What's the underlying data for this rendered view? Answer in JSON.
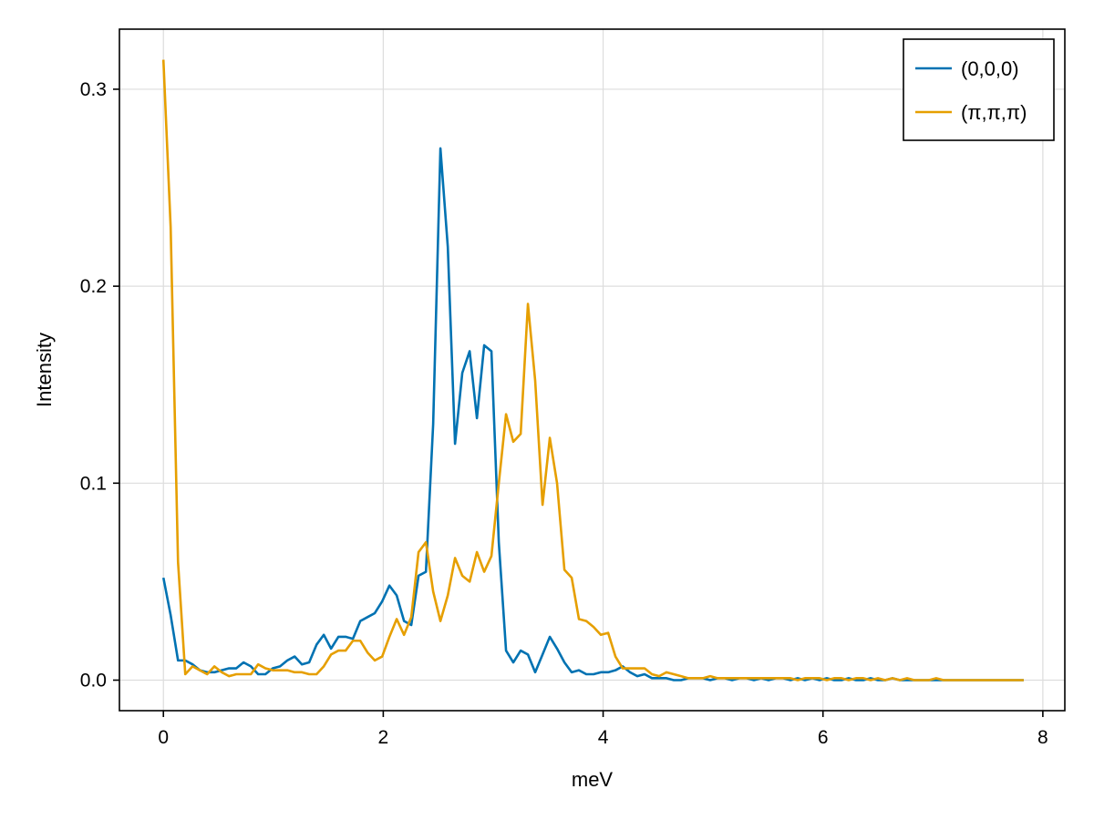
{
  "chart_data": {
    "type": "line",
    "title": "",
    "xlabel": "meV",
    "ylabel": "Intensity",
    "xlim": [
      -0.4,
      8.2
    ],
    "ylim": [
      -0.0155,
      0.3305
    ],
    "xticks": [
      0,
      2,
      4,
      6,
      8
    ],
    "yticks": [
      0.0,
      0.1,
      0.2,
      0.3
    ],
    "xtick_labels": [
      "0",
      "2",
      "4",
      "6",
      "8"
    ],
    "ytick_labels": [
      "0.0",
      "0.1",
      "0.2",
      "0.3"
    ],
    "grid": true,
    "legend_position": "top-right",
    "series": [
      {
        "name": "(0,0,0)",
        "color": "#0072b2",
        "x": [
          0.0,
          0.066,
          0.133,
          0.199,
          0.265,
          0.332,
          0.398,
          0.464,
          0.531,
          0.597,
          0.663,
          0.729,
          0.796,
          0.862,
          0.928,
          0.995,
          1.061,
          1.127,
          1.194,
          1.26,
          1.326,
          1.393,
          1.459,
          1.525,
          1.592,
          1.658,
          1.724,
          1.791,
          1.857,
          1.923,
          1.99,
          2.056,
          2.122,
          2.189,
          2.255,
          2.321,
          2.388,
          2.454,
          2.52,
          2.587,
          2.653,
          2.719,
          2.786,
          2.852,
          2.918,
          2.984,
          3.051,
          3.117,
          3.183,
          3.25,
          3.316,
          3.382,
          3.449,
          3.515,
          3.581,
          3.648,
          3.714,
          3.78,
          3.847,
          3.913,
          3.979,
          4.046,
          4.112,
          4.178,
          4.245,
          4.311,
          4.377,
          4.444,
          4.51,
          4.576,
          4.643,
          4.709,
          4.775,
          4.842,
          4.908,
          4.974,
          5.041,
          5.107,
          5.173,
          5.239,
          5.306,
          5.372,
          5.438,
          5.505,
          5.571,
          5.637,
          5.704,
          5.77,
          5.836,
          5.903,
          5.969,
          6.035,
          6.102,
          6.168,
          6.234,
          6.301,
          6.367,
          6.433,
          6.5,
          6.566,
          6.632,
          6.699,
          6.765,
          6.831,
          6.898,
          6.964,
          7.03,
          7.097,
          7.163,
          7.229,
          7.296,
          7.362,
          7.428,
          7.494,
          7.561,
          7.627,
          7.693,
          7.76,
          7.826
        ],
        "y": [
          0.052,
          0.033,
          0.01,
          0.01,
          0.008,
          0.005,
          0.004,
          0.004,
          0.005,
          0.006,
          0.006,
          0.009,
          0.007,
          0.003,
          0.003,
          0.006,
          0.007,
          0.01,
          0.012,
          0.008,
          0.009,
          0.018,
          0.023,
          0.016,
          0.022,
          0.022,
          0.021,
          0.03,
          0.032,
          0.034,
          0.04,
          0.048,
          0.043,
          0.03,
          0.028,
          0.053,
          0.055,
          0.13,
          0.27,
          0.22,
          0.12,
          0.156,
          0.167,
          0.133,
          0.17,
          0.167,
          0.07,
          0.015,
          0.009,
          0.015,
          0.013,
          0.004,
          0.013,
          0.022,
          0.016,
          0.009,
          0.004,
          0.005,
          0.003,
          0.003,
          0.004,
          0.004,
          0.005,
          0.007,
          0.004,
          0.002,
          0.003,
          0.001,
          0.001,
          0.001,
          0.0,
          0.0,
          0.001,
          0.001,
          0.001,
          0.0,
          0.001,
          0.001,
          0.0,
          0.001,
          0.001,
          0.0,
          0.001,
          0.0,
          0.001,
          0.001,
          0.0,
          0.001,
          0.0,
          0.001,
          0.0,
          0.001,
          0.0,
          0.0,
          0.001,
          0.0,
          0.0,
          0.001,
          0.0,
          0.0,
          0.001,
          0.0,
          0.0,
          0.0,
          0.0,
          0.0,
          0.0,
          0.0,
          0.0,
          0.0,
          0.0,
          0.0,
          0.0,
          0.0,
          0.0,
          0.0,
          0.0,
          0.0,
          0.0
        ]
      },
      {
        "name": "(π,π,π)",
        "color": "#e69f00",
        "x": [
          0.0,
          0.066,
          0.133,
          0.199,
          0.265,
          0.332,
          0.398,
          0.464,
          0.531,
          0.597,
          0.663,
          0.729,
          0.796,
          0.862,
          0.928,
          0.995,
          1.061,
          1.127,
          1.194,
          1.26,
          1.326,
          1.393,
          1.459,
          1.525,
          1.592,
          1.658,
          1.724,
          1.791,
          1.857,
          1.923,
          1.99,
          2.056,
          2.122,
          2.189,
          2.255,
          2.321,
          2.388,
          2.454,
          2.52,
          2.587,
          2.653,
          2.719,
          2.786,
          2.852,
          2.918,
          2.984,
          3.051,
          3.117,
          3.183,
          3.25,
          3.316,
          3.382,
          3.449,
          3.515,
          3.581,
          3.648,
          3.714,
          3.78,
          3.847,
          3.913,
          3.979,
          4.046,
          4.112,
          4.178,
          4.245,
          4.311,
          4.377,
          4.444,
          4.51,
          4.576,
          4.643,
          4.709,
          4.775,
          4.842,
          4.908,
          4.974,
          5.041,
          5.107,
          5.173,
          5.239,
          5.306,
          5.372,
          5.438,
          5.505,
          5.571,
          5.637,
          5.704,
          5.77,
          5.836,
          5.903,
          5.969,
          6.035,
          6.102,
          6.168,
          6.234,
          6.301,
          6.367,
          6.433,
          6.5,
          6.566,
          6.632,
          6.699,
          6.765,
          6.831,
          6.898,
          6.964,
          7.03,
          7.097,
          7.163,
          7.229,
          7.296,
          7.362,
          7.428,
          7.494,
          7.561,
          7.627,
          7.693,
          7.76,
          7.826
        ],
        "y": [
          0.315,
          0.23,
          0.06,
          0.003,
          0.007,
          0.005,
          0.003,
          0.007,
          0.004,
          0.002,
          0.003,
          0.003,
          0.003,
          0.008,
          0.006,
          0.005,
          0.005,
          0.005,
          0.004,
          0.004,
          0.003,
          0.003,
          0.007,
          0.013,
          0.015,
          0.015,
          0.02,
          0.02,
          0.014,
          0.01,
          0.012,
          0.022,
          0.031,
          0.023,
          0.032,
          0.065,
          0.07,
          0.045,
          0.03,
          0.043,
          0.062,
          0.053,
          0.05,
          0.065,
          0.055,
          0.063,
          0.1,
          0.135,
          0.121,
          0.125,
          0.191,
          0.152,
          0.089,
          0.123,
          0.1,
          0.056,
          0.052,
          0.031,
          0.03,
          0.027,
          0.023,
          0.024,
          0.012,
          0.006,
          0.006,
          0.006,
          0.006,
          0.003,
          0.002,
          0.004,
          0.003,
          0.002,
          0.001,
          0.001,
          0.001,
          0.002,
          0.001,
          0.001,
          0.001,
          0.001,
          0.001,
          0.001,
          0.001,
          0.001,
          0.001,
          0.001,
          0.001,
          0.0,
          0.001,
          0.001,
          0.001,
          0.0,
          0.001,
          0.001,
          0.0,
          0.001,
          0.001,
          0.0,
          0.001,
          0.0,
          0.001,
          0.0,
          0.001,
          0.0,
          0.0,
          0.0,
          0.001,
          0.0,
          0.0,
          0.0,
          0.0,
          0.0,
          0.0,
          0.0,
          0.0,
          0.0,
          0.0,
          0.0,
          0.0
        ]
      }
    ]
  }
}
